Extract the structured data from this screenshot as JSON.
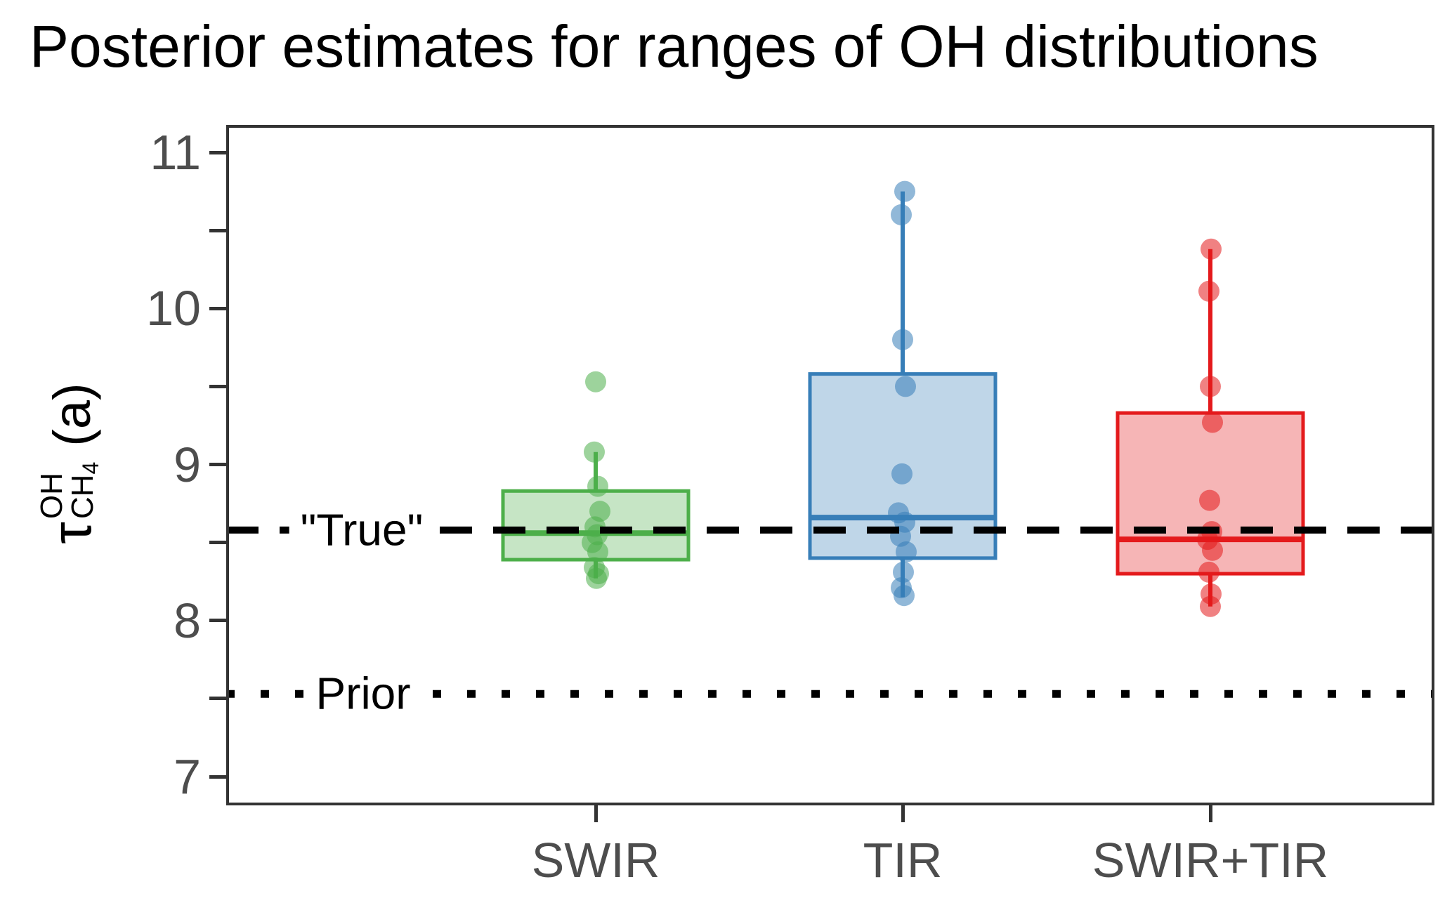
{
  "title": "Posterior estimates for ranges of OH distributions",
  "y_axis": {
    "symbol": "τ",
    "superscript": "OH",
    "subscript_main": "CH",
    "subscript_sub": "4",
    "unit": "(a)",
    "major_ticks": [
      11,
      10,
      9,
      8,
      7
    ],
    "minor_ticks": [
      10.5,
      9.5,
      8.5,
      7.5
    ]
  },
  "x_axis": {
    "categories": [
      "SWIR",
      "TIR",
      "SWIR+TIR"
    ]
  },
  "reference_lines": {
    "true": {
      "label": "\"True\"",
      "value": 8.58,
      "style": "dashed",
      "color": "#000000"
    },
    "prior": {
      "label": "Prior",
      "value": 7.53,
      "style": "dotted",
      "color": "#000000"
    }
  },
  "chart_data": {
    "type": "boxplot",
    "title": "Posterior estimates for ranges of OH distributions",
    "ylabel": "tau_CH4^OH (a)",
    "xlabel": "",
    "ylim": [
      6.82,
      11.18
    ],
    "grid": false,
    "categories": [
      "SWIR",
      "TIR",
      "SWIR+TIR"
    ],
    "series": [
      {
        "name": "SWIR",
        "color": "#4daf4a",
        "q1": 8.39,
        "median": 8.56,
        "q3": 8.83,
        "whisker_low": 8.27,
        "whisker_high": 9.08,
        "points": [
          9.53,
          9.08,
          8.86,
          8.7,
          8.6,
          8.55,
          8.5,
          8.44,
          8.34,
          8.3,
          8.27
        ]
      },
      {
        "name": "TIR",
        "color": "#377eb8",
        "q1": 8.4,
        "median": 8.66,
        "q3": 9.58,
        "whisker_low": 8.15,
        "whisker_high": 10.75,
        "points": [
          10.75,
          10.6,
          9.8,
          9.5,
          8.94,
          8.69,
          8.63,
          8.54,
          8.44,
          8.31,
          8.21,
          8.16
        ]
      },
      {
        "name": "SWIR+TIR",
        "color": "#e41a1c",
        "q1": 8.3,
        "median": 8.52,
        "q3": 9.33,
        "whisker_low": 8.09,
        "whisker_high": 10.38,
        "points": [
          10.38,
          10.11,
          9.5,
          9.27,
          8.77,
          8.57,
          8.52,
          8.45,
          8.31,
          8.17,
          8.09
        ]
      }
    ],
    "reference_lines": [
      {
        "label": "\"True\"",
        "value": 8.58,
        "style": "dashed"
      },
      {
        "label": "Prior",
        "value": 7.53,
        "style": "dotted"
      }
    ]
  }
}
